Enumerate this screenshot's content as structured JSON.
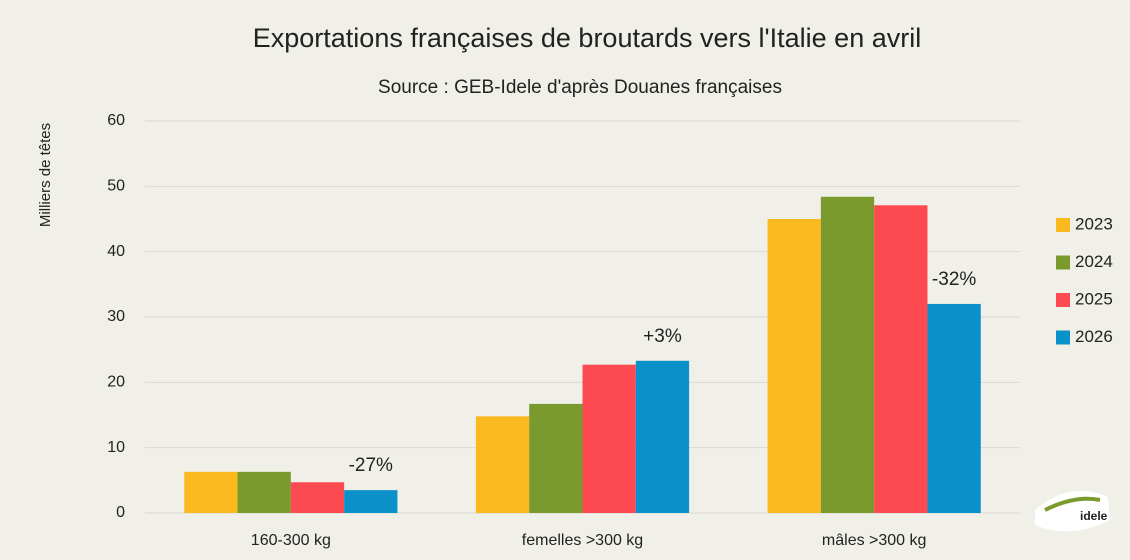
{
  "chart_data": {
    "type": "bar",
    "title": "Exportations françaises de broutards vers l'Italie en avril",
    "subtitle": "Source : GEB-Idele d'après Douanes françaises",
    "y_label": "Milliers de têtes",
    "categories": [
      "160-300 kg",
      "femelles >300 kg",
      "mâles >300 kg"
    ],
    "series": [
      {
        "name": "2023",
        "color": "#fbb920",
        "values": [
          6.3,
          14.8,
          45.0
        ]
      },
      {
        "name": "2024",
        "color": "#7a9a2e",
        "values": [
          6.3,
          16.7,
          48.4
        ]
      },
      {
        "name": "2025",
        "color": "#fd4a50",
        "values": [
          4.7,
          22.7,
          47.1
        ]
      },
      {
        "name": "2026",
        "color": "#0b91c9",
        "values": [
          3.5,
          23.3,
          32.0
        ]
      }
    ],
    "annotations": [
      {
        "text": "-27%",
        "category": 0,
        "series": 3
      },
      {
        "text": "+3%",
        "category": 1,
        "series": 3
      },
      {
        "text": "-32%",
        "category": 2,
        "series": 3
      }
    ],
    "annotation_color": "#1a8fc9",
    "ylim": [
      0,
      60
    ],
    "yticks": [
      0,
      10,
      20,
      30,
      40,
      50,
      60
    ],
    "grid": true,
    "legend": "right",
    "logo": "idele"
  }
}
